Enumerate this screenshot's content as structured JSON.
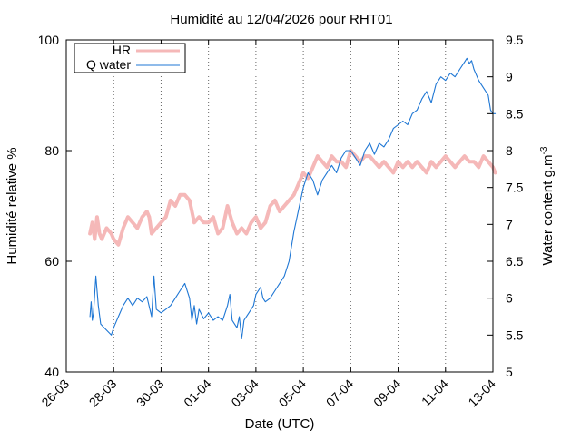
{
  "chart_data": {
    "type": "line",
    "title": "Humidité au 12/04/2026 pour RHT01",
    "xlabel": "Date (UTC)",
    "ylabel_left": "Humidité relative %",
    "ylabel_right_main": "Water content g.m",
    "ylabel_right_sup": "-3",
    "x_unit": "day (0 = 26-03)",
    "x_ticks": [
      {
        "v": 0,
        "label": "26-03"
      },
      {
        "v": 2,
        "label": "28-03"
      },
      {
        "v": 4,
        "label": "30-03"
      },
      {
        "v": 6,
        "label": "01-04"
      },
      {
        "v": 8,
        "label": "03-04"
      },
      {
        "v": 10,
        "label": "05-04"
      },
      {
        "v": 12,
        "label": "07-04"
      },
      {
        "v": 14,
        "label": "09-04"
      },
      {
        "v": 16,
        "label": "11-04"
      },
      {
        "v": 18,
        "label": "13-04"
      }
    ],
    "xlim": [
      0,
      18
    ],
    "ylim_left": [
      40,
      100
    ],
    "yticks_left": [
      {
        "v": 40,
        "label": "40"
      },
      {
        "v": 60,
        "label": "60"
      },
      {
        "v": 80,
        "label": "80"
      },
      {
        "v": 100,
        "label": "100"
      }
    ],
    "ylim_right": [
      5,
      9.5
    ],
    "yticks_right": [
      {
        "v": 5,
        "label": "5"
      },
      {
        "v": 5.5,
        "label": "5.5"
      },
      {
        "v": 6,
        "label": "6"
      },
      {
        "v": 6.5,
        "label": "6.5"
      },
      {
        "v": 7,
        "label": "7"
      },
      {
        "v": 7.5,
        "label": "7.5"
      },
      {
        "v": 8,
        "label": "8"
      },
      {
        "v": 8.5,
        "label": "8.5"
      },
      {
        "v": 9,
        "label": "9"
      },
      {
        "v": 9.5,
        "label": "9.5"
      }
    ],
    "grid": "vertical dotted",
    "legend_position": "top-left",
    "series": [
      {
        "name": "HR",
        "axis": "left",
        "color": "#f5b8b8",
        "points": [
          [
            1.0,
            65
          ],
          [
            1.1,
            67
          ],
          [
            1.2,
            64
          ],
          [
            1.3,
            68
          ],
          [
            1.4,
            65
          ],
          [
            1.5,
            64
          ],
          [
            1.7,
            66
          ],
          [
            1.9,
            65
          ],
          [
            2.0,
            64
          ],
          [
            2.2,
            63
          ],
          [
            2.4,
            66
          ],
          [
            2.6,
            68
          ],
          [
            2.8,
            67
          ],
          [
            3.0,
            66
          ],
          [
            3.2,
            68
          ],
          [
            3.4,
            69
          ],
          [
            3.5,
            68
          ],
          [
            3.6,
            65
          ],
          [
            3.8,
            66
          ],
          [
            4.0,
            67
          ],
          [
            4.2,
            68
          ],
          [
            4.4,
            71
          ],
          [
            4.6,
            70
          ],
          [
            4.8,
            72
          ],
          [
            5.0,
            72
          ],
          [
            5.2,
            71
          ],
          [
            5.4,
            67
          ],
          [
            5.6,
            68
          ],
          [
            5.8,
            67
          ],
          [
            6.0,
            67
          ],
          [
            6.2,
            68
          ],
          [
            6.4,
            65
          ],
          [
            6.6,
            66
          ],
          [
            6.8,
            70
          ],
          [
            7.0,
            67
          ],
          [
            7.2,
            65
          ],
          [
            7.4,
            66
          ],
          [
            7.6,
            65
          ],
          [
            7.8,
            67
          ],
          [
            8.0,
            68
          ],
          [
            8.2,
            66
          ],
          [
            8.4,
            67
          ],
          [
            8.6,
            70
          ],
          [
            8.8,
            71
          ],
          [
            9.0,
            69
          ],
          [
            9.2,
            70
          ],
          [
            9.4,
            71
          ],
          [
            9.6,
            72
          ],
          [
            9.8,
            74
          ],
          [
            10.0,
            76
          ],
          [
            10.2,
            75
          ],
          [
            10.4,
            77
          ],
          [
            10.6,
            79
          ],
          [
            10.8,
            78
          ],
          [
            11.0,
            77
          ],
          [
            11.2,
            79
          ],
          [
            11.4,
            78
          ],
          [
            11.6,
            78
          ],
          [
            11.8,
            77
          ],
          [
            12.0,
            80
          ],
          [
            12.2,
            79
          ],
          [
            12.4,
            78
          ],
          [
            12.6,
            79
          ],
          [
            12.8,
            79
          ],
          [
            13.0,
            78
          ],
          [
            13.2,
            77
          ],
          [
            13.4,
            78
          ],
          [
            13.6,
            77
          ],
          [
            13.8,
            76
          ],
          [
            14.0,
            78
          ],
          [
            14.2,
            77
          ],
          [
            14.4,
            78
          ],
          [
            14.6,
            77
          ],
          [
            14.8,
            78
          ],
          [
            15.0,
            77
          ],
          [
            15.2,
            76
          ],
          [
            15.4,
            78
          ],
          [
            15.6,
            77
          ],
          [
            15.8,
            78
          ],
          [
            16.0,
            79
          ],
          [
            16.2,
            78
          ],
          [
            16.4,
            77
          ],
          [
            16.6,
            78
          ],
          [
            16.8,
            79
          ],
          [
            17.0,
            78
          ],
          [
            17.2,
            78
          ],
          [
            17.4,
            77
          ],
          [
            17.6,
            79
          ],
          [
            17.8,
            78
          ],
          [
            18.0,
            77
          ],
          [
            18.1,
            76
          ]
        ]
      },
      {
        "name": "Q water",
        "axis": "right",
        "color": "#1f77d4",
        "points": [
          [
            1.0,
            5.75
          ],
          [
            1.05,
            5.95
          ],
          [
            1.1,
            5.7
          ],
          [
            1.15,
            5.8
          ],
          [
            1.25,
            6.3
          ],
          [
            1.35,
            5.9
          ],
          [
            1.45,
            5.65
          ],
          [
            1.6,
            5.6
          ],
          [
            1.75,
            5.55
          ],
          [
            1.9,
            5.5
          ],
          [
            2.0,
            5.6
          ],
          [
            2.2,
            5.75
          ],
          [
            2.4,
            5.9
          ],
          [
            2.6,
            6.0
          ],
          [
            2.8,
            5.9
          ],
          [
            3.0,
            6.0
          ],
          [
            3.2,
            5.95
          ],
          [
            3.4,
            6.02
          ],
          [
            3.6,
            5.75
          ],
          [
            3.7,
            6.3
          ],
          [
            3.8,
            5.85
          ],
          [
            4.0,
            5.8
          ],
          [
            4.2,
            5.85
          ],
          [
            4.4,
            5.9
          ],
          [
            4.6,
            6.0
          ],
          [
            4.8,
            6.1
          ],
          [
            5.0,
            6.2
          ],
          [
            5.2,
            6.0
          ],
          [
            5.3,
            5.7
          ],
          [
            5.4,
            5.9
          ],
          [
            5.5,
            5.65
          ],
          [
            5.6,
            5.85
          ],
          [
            5.8,
            5.72
          ],
          [
            6.0,
            5.8
          ],
          [
            6.2,
            5.7
          ],
          [
            6.4,
            5.75
          ],
          [
            6.6,
            5.7
          ],
          [
            6.8,
            5.9
          ],
          [
            6.9,
            6.05
          ],
          [
            7.0,
            5.7
          ],
          [
            7.2,
            5.6
          ],
          [
            7.3,
            5.75
          ],
          [
            7.4,
            5.45
          ],
          [
            7.5,
            5.7
          ],
          [
            7.7,
            5.8
          ],
          [
            7.9,
            5.9
          ],
          [
            8.0,
            6.05
          ],
          [
            8.2,
            6.15
          ],
          [
            8.3,
            6.0
          ],
          [
            8.4,
            5.95
          ],
          [
            8.6,
            6.0
          ],
          [
            8.8,
            6.1
          ],
          [
            9.0,
            6.2
          ],
          [
            9.2,
            6.3
          ],
          [
            9.4,
            6.5
          ],
          [
            9.6,
            6.9
          ],
          [
            9.8,
            7.2
          ],
          [
            10.0,
            7.5
          ],
          [
            10.2,
            7.7
          ],
          [
            10.4,
            7.6
          ],
          [
            10.6,
            7.4
          ],
          [
            10.8,
            7.6
          ],
          [
            11.0,
            7.7
          ],
          [
            11.2,
            7.8
          ],
          [
            11.4,
            7.7
          ],
          [
            11.6,
            7.9
          ],
          [
            11.8,
            8.0
          ],
          [
            12.0,
            8.0
          ],
          [
            12.2,
            7.9
          ],
          [
            12.4,
            7.8
          ],
          [
            12.6,
            8.0
          ],
          [
            12.8,
            8.1
          ],
          [
            13.0,
            7.95
          ],
          [
            13.2,
            8.1
          ],
          [
            13.4,
            8.05
          ],
          [
            13.6,
            8.15
          ],
          [
            13.8,
            8.3
          ],
          [
            14.0,
            8.35
          ],
          [
            14.2,
            8.4
          ],
          [
            14.4,
            8.35
          ],
          [
            14.6,
            8.5
          ],
          [
            14.8,
            8.55
          ],
          [
            15.0,
            8.7
          ],
          [
            15.2,
            8.8
          ],
          [
            15.4,
            8.65
          ],
          [
            15.6,
            8.9
          ],
          [
            15.8,
            9.0
          ],
          [
            16.0,
            8.95
          ],
          [
            16.2,
            9.05
          ],
          [
            16.4,
            9.0
          ],
          [
            16.6,
            9.1
          ],
          [
            16.8,
            9.2
          ],
          [
            16.9,
            9.25
          ],
          [
            17.0,
            9.18
          ],
          [
            17.1,
            9.22
          ],
          [
            17.2,
            9.1
          ],
          [
            17.4,
            8.95
          ],
          [
            17.6,
            8.85
          ],
          [
            17.8,
            8.75
          ],
          [
            17.9,
            8.55
          ],
          [
            18.0,
            8.5
          ],
          [
            18.1,
            8.5
          ]
        ]
      }
    ]
  },
  "colors": {
    "hr": "#f5b8b8",
    "qwater": "#1f77d4",
    "grid": "#666666",
    "axis": "#000000"
  }
}
